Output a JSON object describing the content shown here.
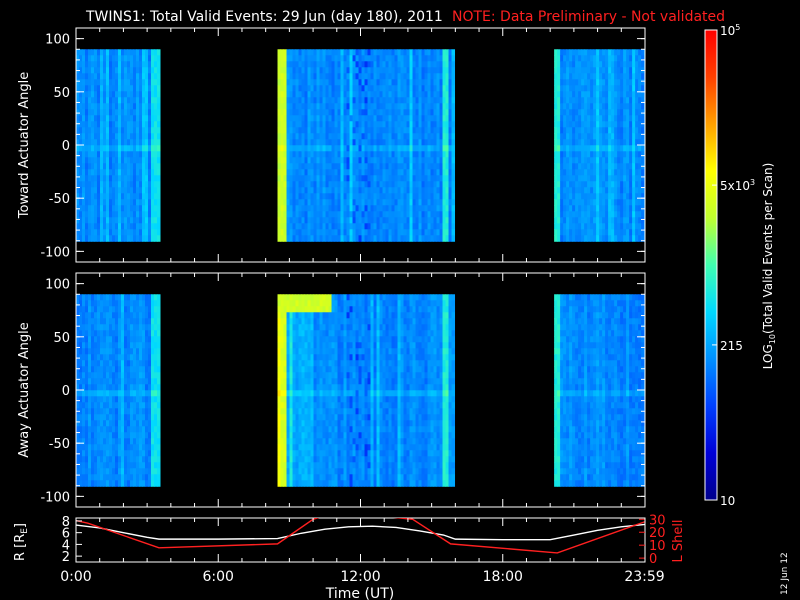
{
  "header": {
    "title": "TWINS1: Total Valid Events: 29 Jun (day 180), 2011",
    "note": "NOTE: Data Preliminary - Not validated",
    "note_color": "#ff2020"
  },
  "stamp": "12 Jun 12",
  "chart_data": [
    {
      "type": "heatmap",
      "panel": "top",
      "ylabel": "Toward Actuator Angle",
      "ylim": [
        -110,
        110
      ],
      "yticks": [
        "100",
        "50",
        "0",
        "-50",
        "-100"
      ],
      "ytick_values": [
        100,
        50,
        0,
        -50,
        -100
      ],
      "x_range_hours": [
        0,
        24
      ],
      "data_y_range": [
        -90,
        90
      ],
      "data_intervals_ut": [
        {
          "start": "0:00",
          "end": "3:30"
        },
        {
          "start": "8:30",
          "end": "15:55"
        },
        {
          "start": "20:10",
          "end": "24:00"
        }
      ]
    },
    {
      "type": "heatmap",
      "panel": "middle",
      "ylabel": "Away Actuator Angle",
      "ylim": [
        -110,
        110
      ],
      "yticks": [
        "100",
        "50",
        "0",
        "-50",
        "-100"
      ],
      "ytick_values": [
        100,
        50,
        0,
        -50,
        -100
      ],
      "x_range_hours": [
        0,
        24
      ],
      "data_y_range": [
        -90,
        90
      ],
      "data_intervals_ut": [
        {
          "start": "0:00",
          "end": "3:30"
        },
        {
          "start": "8:30",
          "end": "15:55"
        },
        {
          "start": "20:10",
          "end": "24:00"
        }
      ]
    },
    {
      "type": "line",
      "panel": "bottom",
      "xlabel": "Time (UT)",
      "xticks": [
        "0:00",
        "6:00",
        "12:00",
        "18:00",
        "23:59"
      ],
      "xtick_values": [
        0,
        6,
        12,
        18,
        23.98
      ],
      "ylabel_left": "R [R",
      "ylabel_left_sub": "E",
      "ylabel_left_close": "]",
      "yticks_left": [
        "8",
        "6",
        "4",
        "2"
      ],
      "ytick_left_values": [
        8,
        6,
        4,
        2
      ],
      "ylim_left": [
        1,
        8.5
      ],
      "ylabel_right": "L Shell",
      "ylabel_right_color": "#ff2020",
      "yticks_right": [
        "30",
        "20",
        "10",
        "0"
      ],
      "ytick_right_values": [
        30,
        20,
        10,
        0
      ],
      "ylim_right": [
        -3,
        31
      ],
      "series": [
        {
          "axis": "left",
          "color": "#ffffff",
          "x": [
            0,
            1,
            2,
            3,
            3.5,
            4,
            6,
            8.5,
            9.5,
            10.5,
            11.5,
            12.5,
            13.5,
            14.5,
            15.5,
            16,
            18,
            20,
            21,
            22,
            23,
            24
          ],
          "y": [
            7.3,
            6.8,
            6.0,
            5.2,
            4.9,
            4.9,
            4.9,
            5.0,
            5.9,
            6.6,
            7.0,
            7.1,
            6.9,
            6.3,
            5.6,
            4.9,
            4.8,
            4.8,
            5.6,
            6.4,
            7.0,
            7.4
          ]
        },
        {
          "axis": "right",
          "color": "#ff2020",
          "x": [
            0,
            0.5,
            3.5,
            8.5,
            10,
            11.0,
            14.2,
            15.8,
            20.3,
            23.98
          ],
          "y": [
            29,
            27,
            8,
            11,
            30,
            36,
            30,
            11,
            4,
            28
          ]
        }
      ]
    }
  ],
  "colorbar": {
    "label_prefix": "LOG",
    "label_sub": "10",
    "label_suffix": "(Total Valid Events per Scan)",
    "ticks": [
      {
        "label": "10",
        "frac": 0.0
      },
      {
        "label": "215",
        "frac": 0.33
      },
      {
        "label": "5x10",
        "sup": "3",
        "frac": 0.67
      },
      {
        "label": "10",
        "sup": "5",
        "frac": 1.0
      }
    ],
    "colors": [
      "#00008c",
      "#0000d8",
      "#0040ff",
      "#0090ff",
      "#00d8ff",
      "#40ffb0",
      "#c0ff30",
      "#ffff00",
      "#ffa000",
      "#ff4000",
      "#ff0000"
    ]
  }
}
